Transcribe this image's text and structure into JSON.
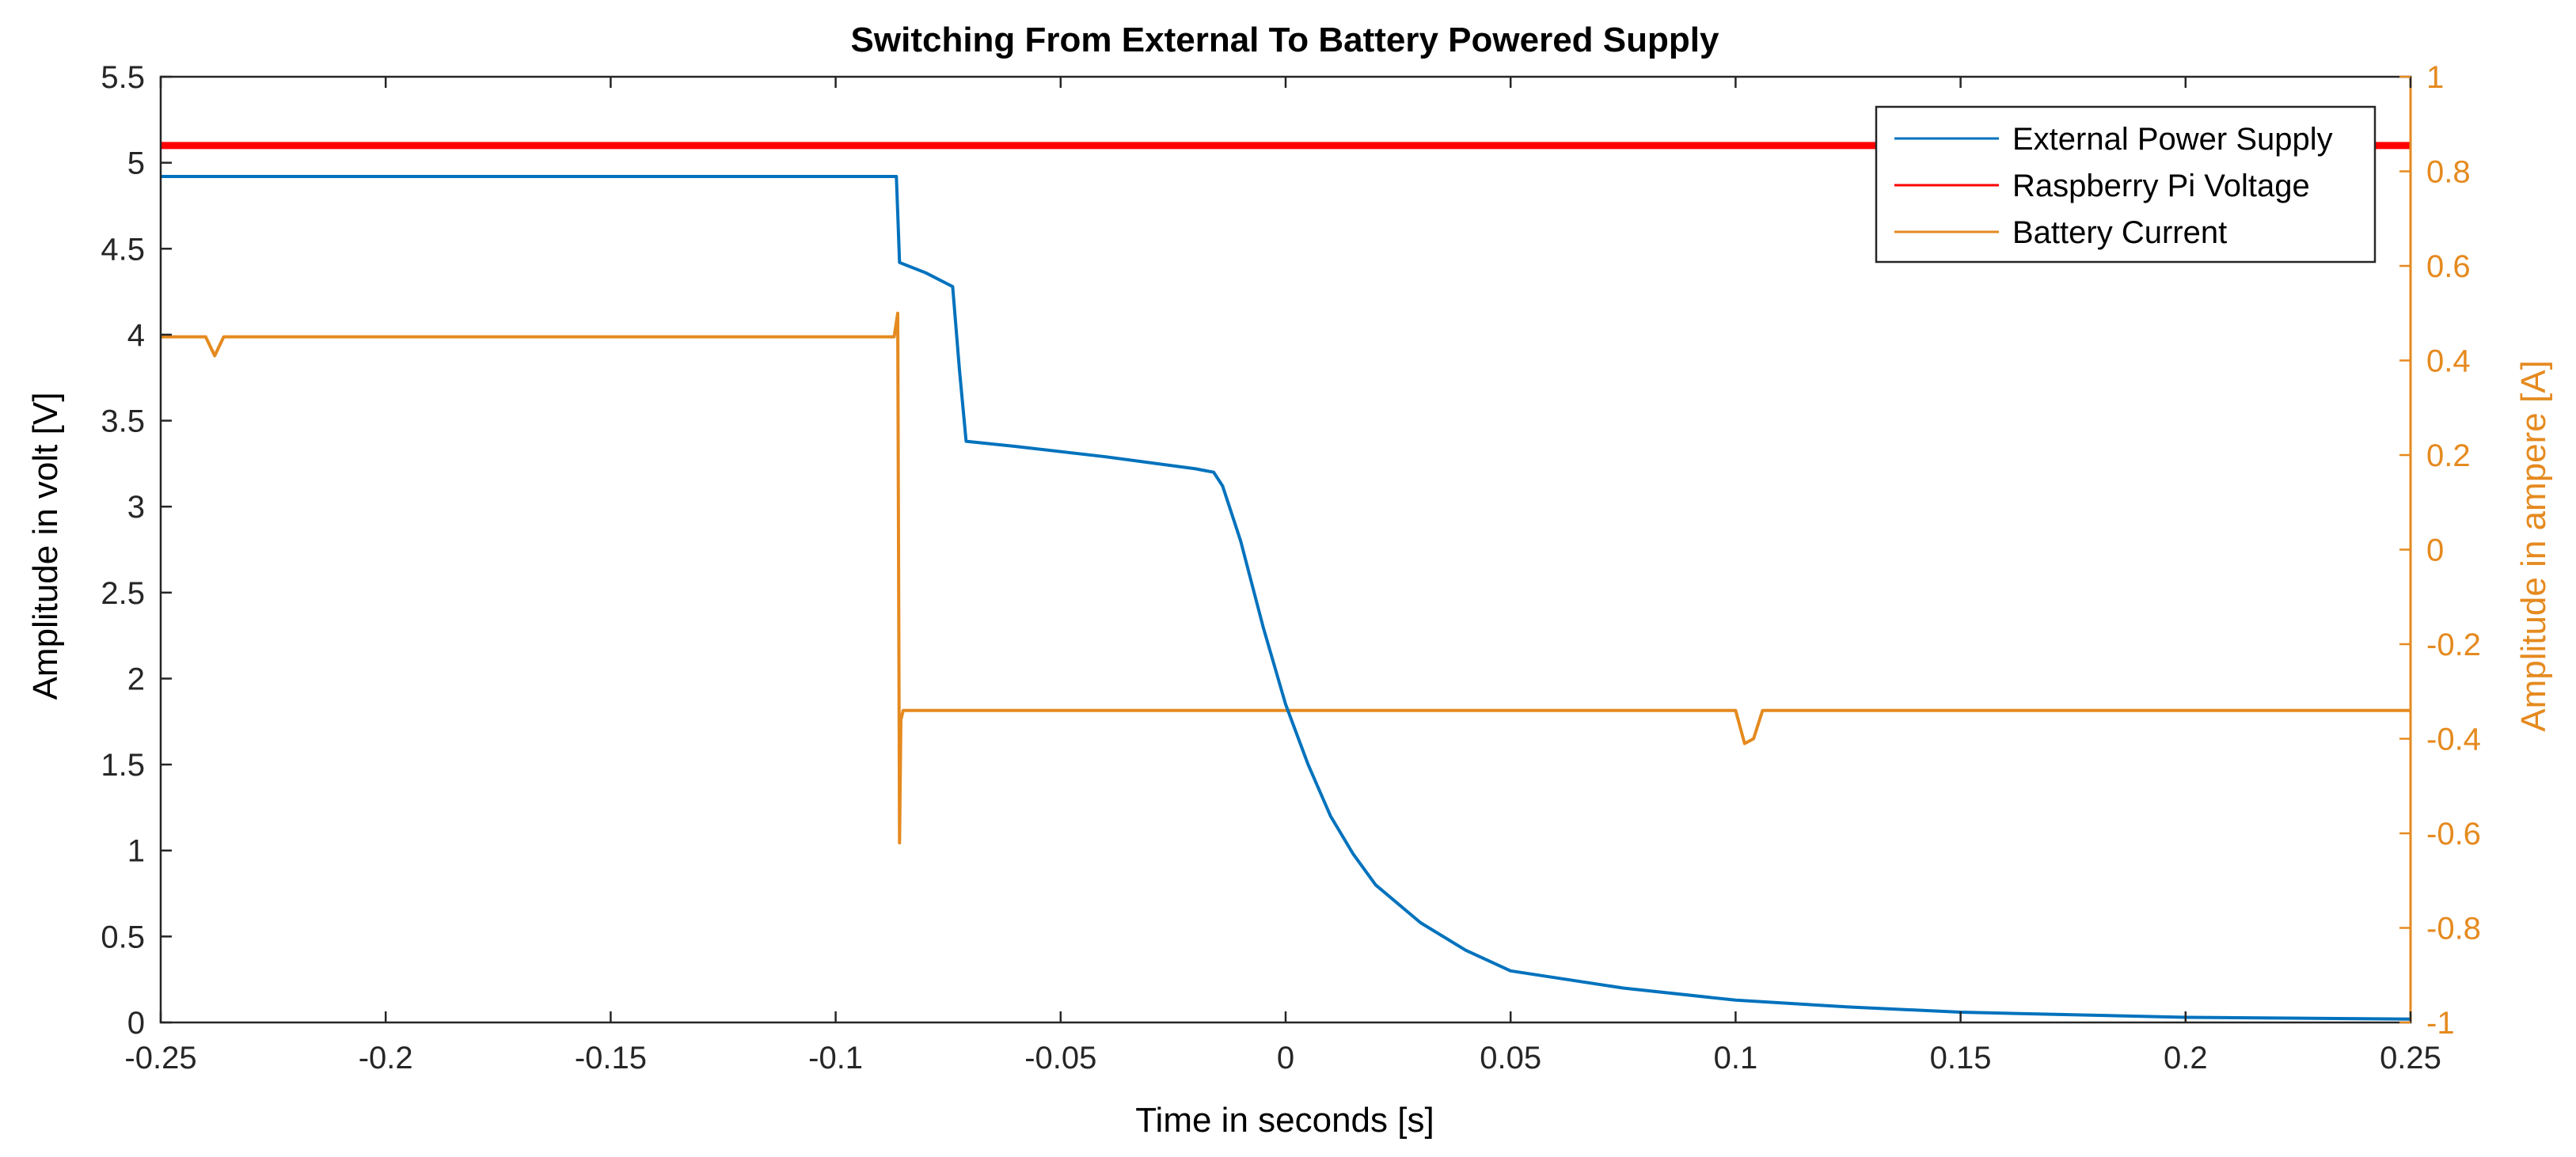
{
  "chart_data": {
    "type": "line",
    "title": "Switching From External To Battery Powered Supply",
    "xlabel": "Time in seconds [s]",
    "ylabel_left": "Amplitude in volt [V]",
    "ylabel_right": "Amplitude in ampere [A]",
    "xlim": [
      -0.25,
      0.25
    ],
    "ylim_left": [
      0,
      5.5
    ],
    "ylim_right": [
      -1,
      1
    ],
    "x_ticks": [
      "-0.25",
      "-0.2",
      "-0.15",
      "-0.1",
      "-0.05",
      "0",
      "0.05",
      "0.1",
      "0.15",
      "0.2",
      "0.25"
    ],
    "y_left_ticks": [
      "0",
      "0.5",
      "1",
      "1.5",
      "2",
      "2.5",
      "3",
      "3.5",
      "4",
      "4.5",
      "5",
      "5.5"
    ],
    "y_right_ticks": [
      "-1",
      "-0.8",
      "-0.6",
      "-0.4",
      "-0.2",
      "0",
      "0.2",
      "0.4",
      "0.6",
      "0.8",
      "1"
    ],
    "grid": false,
    "legend_position": "top-right",
    "colors": {
      "external": "#0072BD",
      "raspberry": "#FF0000",
      "battery": "#E58A1F",
      "right_axis": "#E58A1F"
    },
    "series": [
      {
        "name": "External Power Supply",
        "axis": "left",
        "x": [
          -0.25,
          -0.2,
          -0.15,
          -0.1,
          -0.0865,
          -0.0858,
          -0.08,
          -0.074,
          -0.0725,
          -0.071,
          -0.06,
          -0.04,
          -0.02,
          -0.016,
          -0.014,
          -0.01,
          -0.005,
          0.0,
          0.005,
          0.01,
          0.015,
          0.02,
          0.03,
          0.04,
          0.05,
          0.075,
          0.1,
          0.125,
          0.15,
          0.2,
          0.25
        ],
        "y": [
          4.92,
          4.92,
          4.92,
          4.92,
          4.92,
          4.42,
          4.36,
          4.28,
          3.8,
          3.38,
          3.35,
          3.29,
          3.22,
          3.2,
          3.12,
          2.8,
          2.3,
          1.85,
          1.5,
          1.2,
          0.98,
          0.8,
          0.58,
          0.42,
          0.3,
          0.2,
          0.13,
          0.09,
          0.06,
          0.03,
          0.02
        ]
      },
      {
        "name": "Raspberry Pi Voltage",
        "axis": "left",
        "x": [
          -0.25,
          -0.15,
          -0.05,
          0.0,
          0.05,
          0.15,
          0.25
        ],
        "y": [
          5.1,
          5.1,
          5.1,
          5.1,
          5.1,
          5.1,
          5.1
        ]
      },
      {
        "name": "Battery Current",
        "axis": "right",
        "x": [
          -0.25,
          -0.24,
          -0.238,
          -0.236,
          -0.2,
          -0.15,
          -0.1,
          -0.087,
          -0.0862,
          -0.0858,
          -0.0855,
          -0.085,
          -0.08,
          -0.05,
          0.0,
          0.05,
          0.1,
          0.102,
          0.104,
          0.106,
          0.15,
          0.2,
          0.25
        ],
        "y": [
          0.45,
          0.45,
          0.41,
          0.45,
          0.45,
          0.45,
          0.45,
          0.45,
          0.5,
          -0.62,
          -0.36,
          -0.34,
          -0.34,
          -0.34,
          -0.34,
          -0.34,
          -0.34,
          -0.41,
          -0.4,
          -0.34,
          -0.34,
          -0.34,
          -0.34
        ]
      }
    ]
  }
}
